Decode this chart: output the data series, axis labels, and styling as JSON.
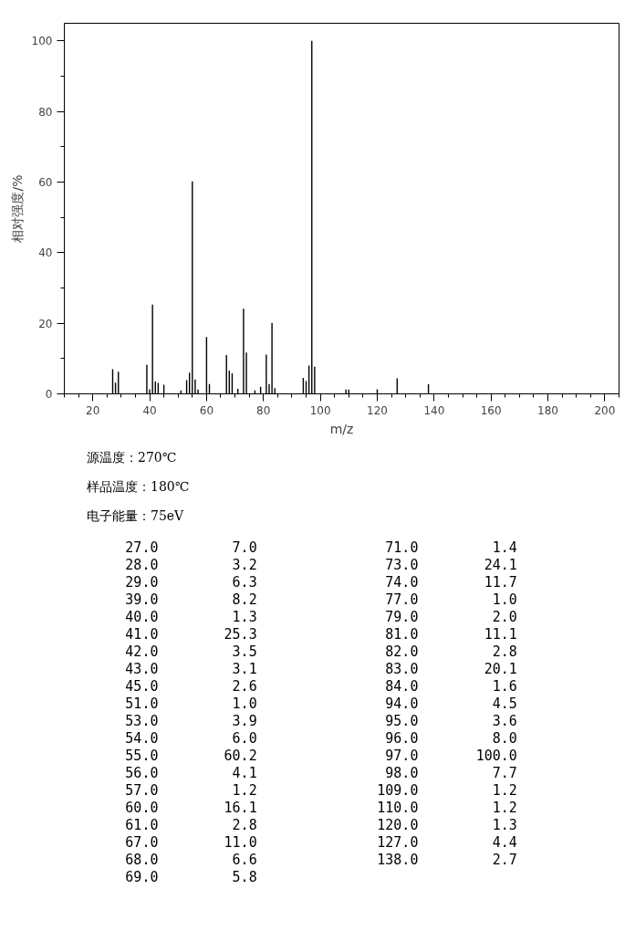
{
  "chart_data": {
    "type": "bar",
    "xlabel": "m/z",
    "ylabel": "相对强度/%",
    "color": "#000000",
    "x": [
      27,
      28,
      29,
      39,
      40,
      41,
      42,
      43,
      45,
      51,
      53,
      54,
      55,
      56,
      57,
      60,
      61,
      67,
      68,
      69,
      71,
      73,
      74,
      77,
      79,
      81,
      82,
      83,
      84,
      94,
      95,
      96,
      97,
      98,
      109,
      110,
      120,
      127,
      138
    ],
    "values": [
      7.0,
      3.2,
      6.3,
      8.2,
      1.3,
      25.3,
      3.5,
      3.1,
      2.6,
      1.0,
      3.9,
      6.0,
      60.2,
      4.1,
      1.2,
      16.1,
      2.8,
      11.0,
      6.6,
      5.8,
      1.4,
      24.1,
      11.7,
      1.0,
      2.0,
      11.1,
      2.8,
      20.1,
      1.6,
      4.5,
      3.6,
      8.0,
      100.0,
      7.7,
      1.2,
      1.2,
      1.3,
      4.4,
      2.7
    ],
    "xlim": [
      10,
      205
    ],
    "ylim": [
      0,
      105
    ],
    "xticks": [
      20,
      40,
      60,
      80,
      100,
      120,
      140,
      160,
      180,
      200
    ],
    "yticks": [
      0,
      20,
      40,
      60,
      80,
      100
    ],
    "grid": false,
    "annotations": [
      "源温度：270℃",
      "样品温度：180℃",
      "电子能量：75eV",
      "27.0",
      "7.0",
      "28.0",
      "3.2",
      "29.0",
      "6.3",
      "39.0",
      "8.2",
      "40.0",
      "1.3",
      "41.0",
      "25.3",
      "42.0",
      "3.5",
      "43.0",
      "3.1",
      "45.0",
      "2.6",
      "51.0",
      "1.0",
      "53.0",
      "3.9",
      "54.0",
      "6.0",
      "55.0",
      "60.2",
      "56.0",
      "4.1",
      "57.0",
      "1.2",
      "60.0",
      "16.1",
      "61.0",
      "2.8",
      "67.0",
      "11.0",
      "68.0",
      "6.6",
      "69.0",
      "5.8",
      "71.0",
      "1.4",
      "73.0",
      "24.1",
      "74.0",
      "11.7",
      "77.0",
      "1.0",
      "79.0",
      "2.0",
      "81.0",
      "11.1",
      "82.0",
      "2.8",
      "83.0",
      "20.1",
      "84.0",
      "1.6",
      "94.0",
      "4.5",
      "95.0",
      "3.6",
      "96.0",
      "8.0",
      "97.0",
      "100.0",
      "98.0",
      "7.7",
      "109.0",
      "1.2",
      "110.0",
      "1.2",
      "120.0",
      "1.3",
      "127.0",
      "4.4",
      "138.0",
      "2.7"
    ]
  }
}
